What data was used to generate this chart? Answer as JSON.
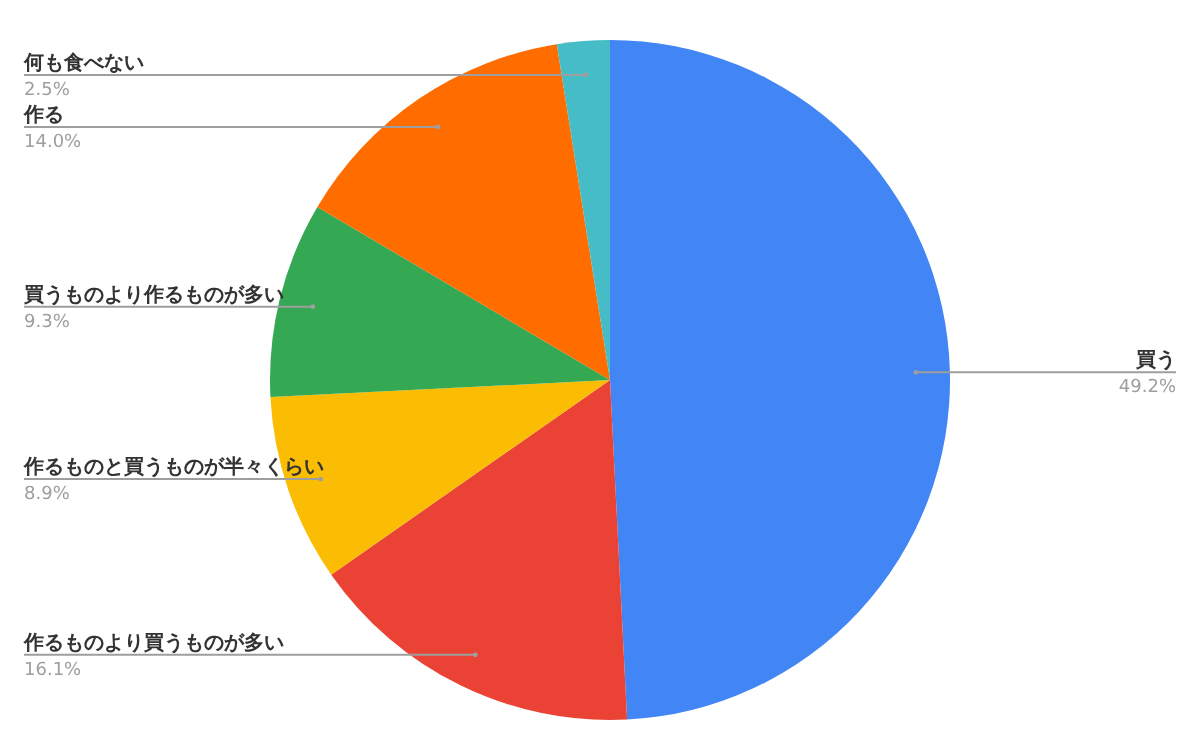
{
  "chart_data": {
    "type": "pie",
    "categories": [
      "買う",
      "作るものより買うものが多い",
      "作るものと買うものが半々くらい",
      "買うものより作るものが多い",
      "作る",
      "何も食べない"
    ],
    "values": [
      49.2,
      16.1,
      8.9,
      9.3,
      14.0,
      2.5
    ],
    "colors": [
      "#4285f4",
      "#ea4335",
      "#fbbc04",
      "#34a853",
      "#ff6d01",
      "#46bdc6"
    ],
    "value_labels": [
      "49.2%",
      "16.1%",
      "8.9%",
      "9.3%",
      "14.0%",
      "2.5%"
    ]
  }
}
